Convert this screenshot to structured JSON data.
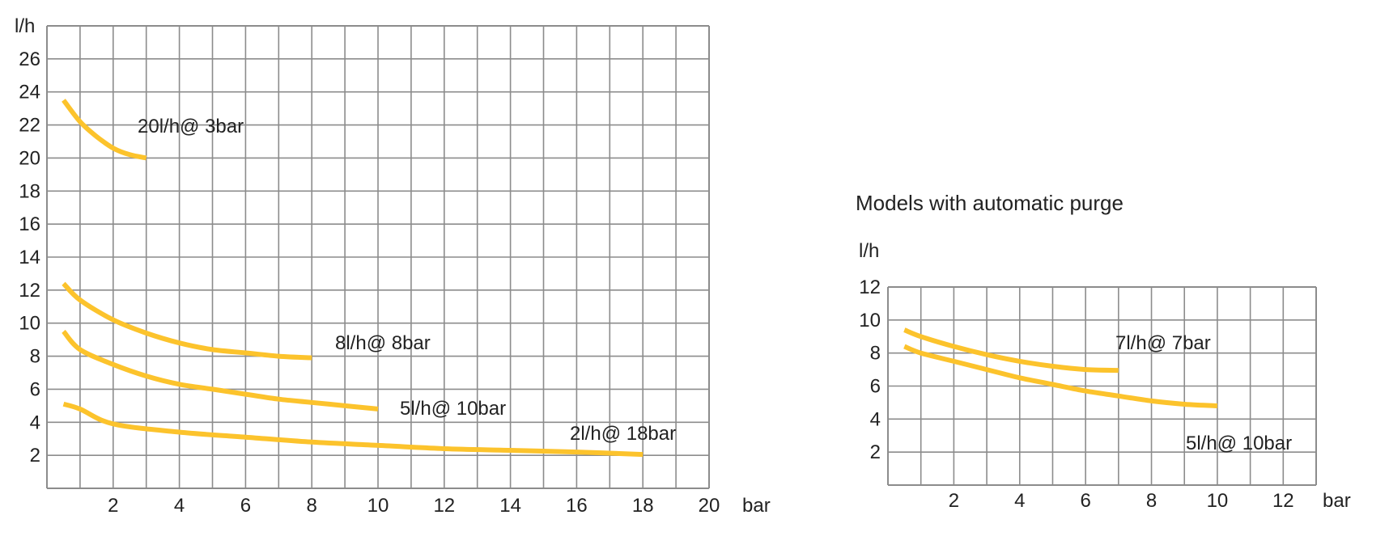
{
  "colors": {
    "curve": "#FCC32C",
    "grid": "#8c8c8c",
    "text": "#222222"
  },
  "chart_data": [
    {
      "type": "line",
      "title": "",
      "xlabel": "bar",
      "ylabel": "l/h",
      "xlim": [
        0,
        20
      ],
      "ylim": [
        0,
        28
      ],
      "x_ticks": [
        2,
        4,
        6,
        8,
        10,
        12,
        14,
        16,
        18,
        20
      ],
      "y_ticks": [
        2,
        4,
        6,
        8,
        10,
        12,
        14,
        16,
        18,
        20,
        22,
        24,
        26
      ],
      "grid": true,
      "series": [
        {
          "name": "20l/h@ 3bar",
          "x": [
            0.5,
            1,
            1.5,
            2,
            2.5,
            3
          ],
          "y": [
            23.5,
            22.2,
            21.3,
            20.6,
            20.2,
            20
          ]
        },
        {
          "name": "8l/h@ 8bar",
          "x": [
            0.5,
            1,
            2,
            3,
            4,
            5,
            6,
            7,
            8
          ],
          "y": [
            12.4,
            11.4,
            10.2,
            9.4,
            8.8,
            8.4,
            8.2,
            8.0,
            7.9
          ]
        },
        {
          "name": "5l/h@ 10bar",
          "x": [
            0.5,
            1,
            2,
            3,
            4,
            5,
            6,
            7,
            8,
            9,
            10
          ],
          "y": [
            9.5,
            8.4,
            7.5,
            6.8,
            6.3,
            6.0,
            5.7,
            5.4,
            5.2,
            5.0,
            4.8
          ]
        },
        {
          "name": "2l/h@ 18bar",
          "x": [
            0.5,
            1,
            2,
            4,
            6,
            8,
            10,
            12,
            14,
            16,
            18
          ],
          "y": [
            5.1,
            4.8,
            3.9,
            3.4,
            3.1,
            2.8,
            2.6,
            2.4,
            2.3,
            2.2,
            2.05
          ]
        }
      ],
      "annotations": [
        "20l/h@ 3bar",
        "8l/h@ 8bar",
        "5l/h@ 10bar",
        "2l/h@ 18bar"
      ]
    },
    {
      "type": "line",
      "title": "Models with automatic purge",
      "xlabel": "bar",
      "ylabel": "l/h",
      "xlim": [
        0,
        13
      ],
      "ylim": [
        0,
        12
      ],
      "x_ticks": [
        2,
        4,
        6,
        8,
        10,
        12
      ],
      "y_ticks": [
        2,
        4,
        6,
        8,
        10,
        12
      ],
      "grid": true,
      "series": [
        {
          "name": "7l/h@ 7bar",
          "x": [
            0.5,
            1,
            2,
            3,
            4,
            5,
            6,
            7
          ],
          "y": [
            9.4,
            9.0,
            8.4,
            7.9,
            7.5,
            7.2,
            7.0,
            6.95
          ]
        },
        {
          "name": "5l/h@ 10bar",
          "x": [
            0.5,
            1,
            2,
            3,
            4,
            5,
            6,
            7,
            8,
            9,
            10
          ],
          "y": [
            8.4,
            8.0,
            7.5,
            7.0,
            6.5,
            6.1,
            5.7,
            5.4,
            5.1,
            4.9,
            4.8
          ]
        }
      ],
      "annotations": [
        "7l/h@ 7bar",
        "5l/h@ 10bar"
      ]
    }
  ]
}
